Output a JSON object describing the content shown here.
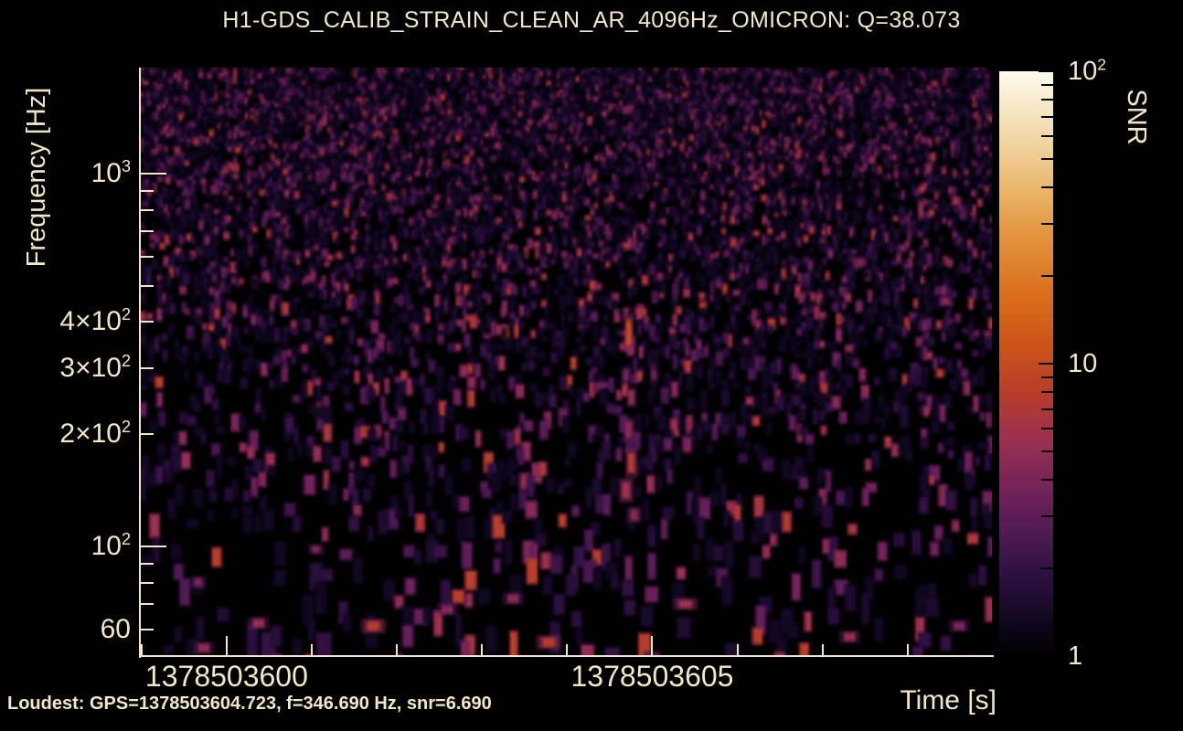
{
  "title": "H1-GDS_CALIB_STRAIN_CLEAN_AR_4096Hz_OMICRON: Q=38.073",
  "footer": {
    "loudest_label": "Loudest: GPS=1378503604.723, f=346.690 Hz, snr=6.690"
  },
  "colors": {
    "background": "#000000",
    "text": "#f2e8c6",
    "axis": "#f2e8c6",
    "colorbar_tick": "#000000"
  },
  "chart_data": {
    "type": "heatmap",
    "subtype": "omicron-q-scan-spectrogram",
    "title": "H1-GDS_CALIB_STRAIN_CLEAN_AR_4096Hz_OMICRON: Q=38.073",
    "channel": "H1-GDS_CALIB_STRAIN_CLEAN_AR_4096Hz_OMICRON",
    "q": 38.073,
    "xlabel": "Time [s]",
    "ylabel": "Frequency [Hz]",
    "colorbar_label": "SNR",
    "x_scale": "linear",
    "x_range_gps": [
      1378503598.97,
      1378503608.99
    ],
    "x_major_ticks": [
      {
        "value": 1378503600,
        "label": "1378503600"
      },
      {
        "value": 1378503605,
        "label": "1378503605"
      }
    ],
    "x_minor_tick_step_s": 1,
    "y_scale": "log",
    "y_range_hz": [
      50.9,
      1923
    ],
    "y_major_ticks": [
      {
        "value": 1000,
        "label": {
          "base": "10",
          "exp": "3"
        }
      },
      {
        "value": 100,
        "label": {
          "base": "10",
          "exp": "2"
        }
      }
    ],
    "y_labeled_minor_ticks": [
      {
        "value": 400,
        "label": {
          "prefix": "4×",
          "base": "10",
          "exp": "2"
        }
      },
      {
        "value": 300,
        "label": {
          "prefix": "3×",
          "base": "10",
          "exp": "2"
        }
      },
      {
        "value": 200,
        "label": {
          "prefix": "2×",
          "base": "10",
          "exp": "2"
        }
      },
      {
        "value": 60,
        "label": {
          "text": "60"
        }
      }
    ],
    "y_minor_ticks": [
      60,
      70,
      80,
      90,
      200,
      300,
      400,
      500,
      600,
      700,
      800,
      900
    ],
    "colorbar_scale": "log",
    "colorbar_range": [
      1,
      100
    ],
    "colorbar_major_ticks": [
      {
        "value": 100,
        "label": {
          "base": "10",
          "exp": "2"
        }
      },
      {
        "value": 10,
        "label": {
          "text": "10"
        }
      },
      {
        "value": 1,
        "label": {
          "text": "1"
        }
      }
    ],
    "colorbar_minor_ticks": [
      2,
      3,
      4,
      5,
      6,
      7,
      8,
      9,
      20,
      30,
      40,
      50,
      60,
      70,
      80,
      90
    ],
    "palette_stops": [
      [
        "0.00",
        "#000000"
      ],
      [
        "0.06",
        "#10081f"
      ],
      [
        "0.13",
        "#2a0f3e"
      ],
      [
        "0.21",
        "#4f1a53"
      ],
      [
        "0.29",
        "#75235a"
      ],
      [
        "0.37",
        "#9a3050"
      ],
      [
        "0.45",
        "#b73d2a"
      ],
      [
        "0.53",
        "#cc5318"
      ],
      [
        "0.62",
        "#da701c"
      ],
      [
        "0.71",
        "#e29038"
      ],
      [
        "0.79",
        "#e9b266"
      ],
      [
        "0.87",
        "#f0d29c"
      ],
      [
        "0.94",
        "#f7e9c8"
      ],
      [
        "1.00",
        "#fdfaee"
      ]
    ],
    "loudest": {
      "gps": 1378503604.723,
      "frequency_hz": 346.69,
      "snr": 6.69
    }
  }
}
